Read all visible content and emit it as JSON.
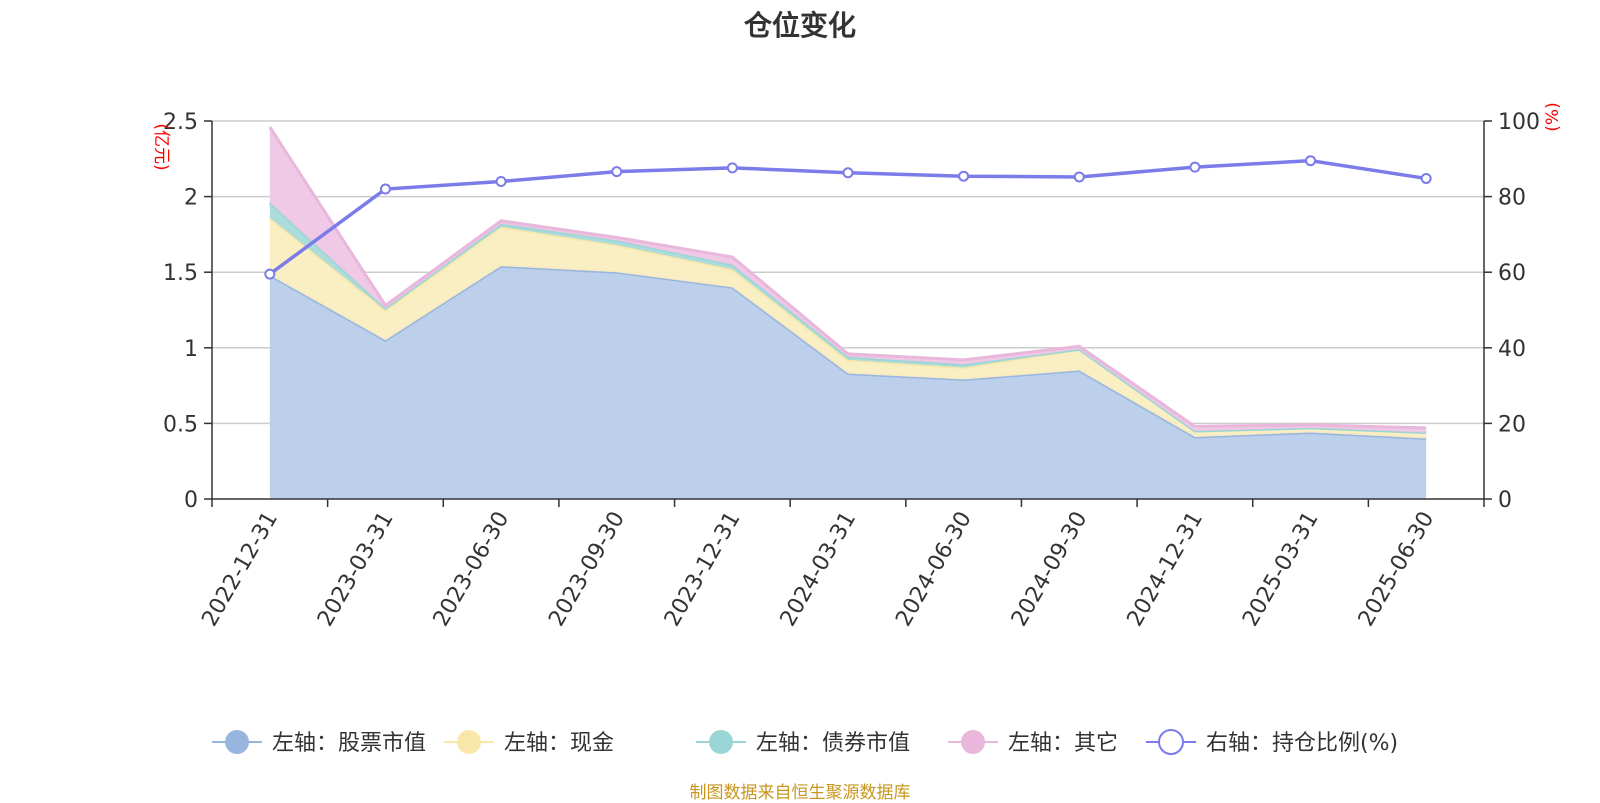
{
  "title": "仓位变化",
  "footer": "制图数据来自恒生聚源数据库",
  "chart_data": {
    "type": "area",
    "categories": [
      "2022-12-31",
      "2023-03-31",
      "2023-06-30",
      "2023-09-30",
      "2023-12-31",
      "2024-03-31",
      "2024-06-30",
      "2024-09-30",
      "2024-12-31",
      "2025-03-31",
      "2025-06-30"
    ],
    "left_axis": {
      "unit": "(亿元)",
      "ylim": [
        0,
        2.5
      ],
      "ticks": [
        0,
        0.5,
        1,
        1.5,
        2,
        2.5
      ],
      "tick_labels": [
        "0",
        "0.5",
        "1",
        "1.5",
        "2",
        "2.5"
      ]
    },
    "right_axis": {
      "unit": "(%)",
      "ylim": [
        0,
        100
      ],
      "ticks": [
        0,
        20,
        40,
        60,
        80,
        100
      ],
      "tick_labels": [
        "0",
        "20",
        "40",
        "60",
        "80",
        "100"
      ]
    },
    "grid": true,
    "legend_position": "bottom",
    "series": [
      {
        "name": "左轴：股票市值",
        "axis": "left",
        "kind": "stacked-area",
        "color": "#98b5e0",
        "fill": "#b8cdea",
        "values": [
          1.48,
          1.05,
          1.54,
          1.5,
          1.4,
          0.83,
          0.79,
          0.85,
          0.41,
          0.44,
          0.4
        ]
      },
      {
        "name": "左轴：现金",
        "axis": "left",
        "kind": "stacked-area",
        "color": "#f8e7a8",
        "fill": "#faedc0",
        "values": [
          0.38,
          0.2,
          0.26,
          0.18,
          0.12,
          0.09,
          0.08,
          0.14,
          0.04,
          0.03,
          0.04
        ]
      },
      {
        "name": "左轴：债券市值",
        "axis": "left",
        "kind": "stacked-area",
        "color": "#9ad6d6",
        "fill": "#a8dbdb",
        "values": [
          0.1,
          0.01,
          0.02,
          0.03,
          0.03,
          0.02,
          0.02,
          0.0,
          0.0,
          0.0,
          0.0
        ]
      },
      {
        "name": "左轴：其它",
        "axis": "left",
        "kind": "stacked-area",
        "color": "#e8b7db",
        "fill": "#efc6e5",
        "values": [
          0.5,
          0.02,
          0.02,
          0.02,
          0.05,
          0.02,
          0.03,
          0.02,
          0.03,
          0.02,
          0.03
        ]
      },
      {
        "name": "右轴：持仓比例(%)",
        "axis": "right",
        "kind": "line",
        "color": "#7b7bea",
        "values": [
          59.5,
          82.0,
          84.0,
          86.6,
          87.6,
          86.3,
          85.4,
          85.2,
          87.8,
          89.5,
          84.8
        ]
      }
    ]
  }
}
